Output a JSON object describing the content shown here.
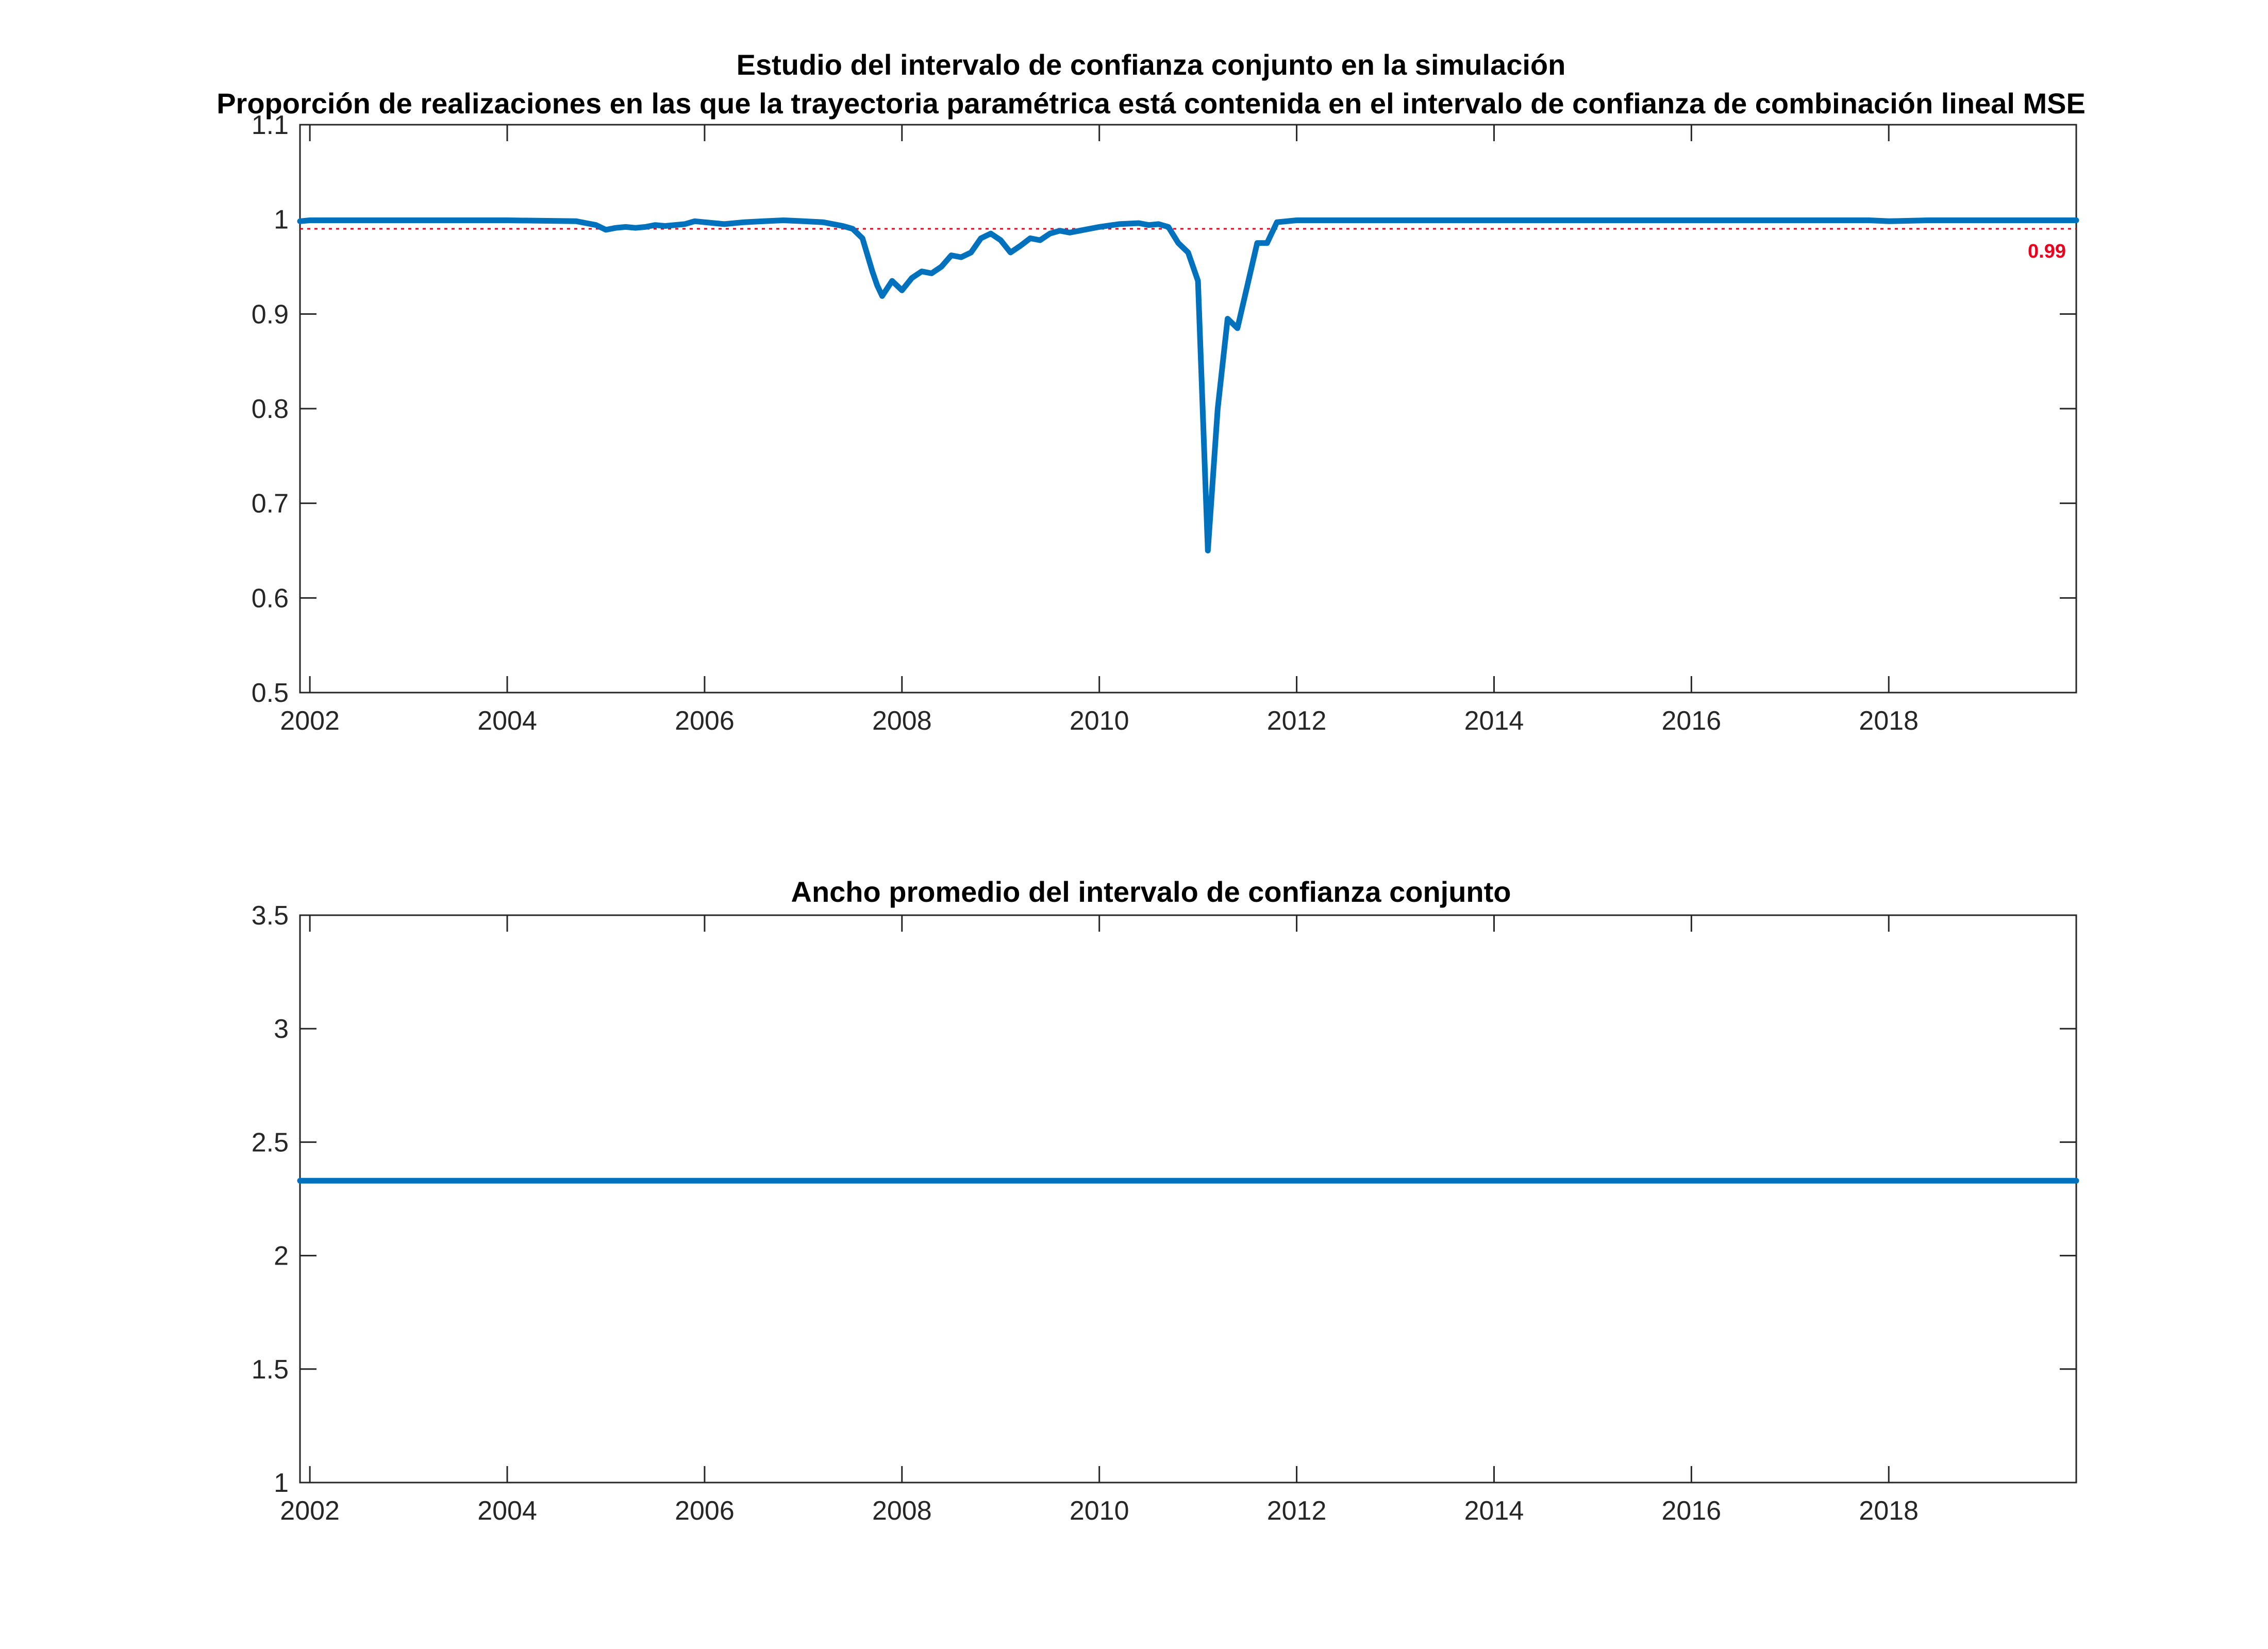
{
  "colors": {
    "series": "#0072BD",
    "reference": "#E8001C"
  },
  "chart_data": [
    {
      "type": "line",
      "title": "Estudio del intervalo de confianza conjunto en la simulación",
      "subtitle": "Proporción de realizaciones en las que la trayectoria paramétrica está contenida en el intervalo de confianza de combinación lineal MSE",
      "xlabel": "",
      "ylabel": "",
      "xlim": [
        2001.9,
        2019.9
      ],
      "ylim": [
        0.5,
        1.1
      ],
      "xticks": [
        "2002",
        "2004",
        "2006",
        "2008",
        "2010",
        "2012",
        "2014",
        "2016",
        "2018"
      ],
      "xtick_values": [
        2002,
        2004,
        2006,
        2008,
        2010,
        2012,
        2014,
        2016,
        2018
      ],
      "yticks": [
        "0.5",
        "0.6",
        "0.7",
        "0.8",
        "0.9",
        "1",
        "1.1"
      ],
      "ytick_values": [
        0.5,
        0.6,
        0.7,
        0.8,
        0.9,
        1.0,
        1.1
      ],
      "grid": false,
      "reference_line": {
        "y": 0.99,
        "label": "0.99"
      },
      "series": [
        {
          "x": [
            2001.9,
            2002.0,
            2003.0,
            2004.0,
            2004.7,
            2004.9,
            2005.0,
            2005.1,
            2005.2,
            2005.3,
            2005.4,
            2005.5,
            2005.6,
            2005.8,
            2005.9,
            2006.0,
            2006.2,
            2006.4,
            2006.6,
            2006.8,
            2007.0,
            2007.2,
            2007.4,
            2007.5,
            2007.6,
            2007.7,
            2007.75,
            2007.8,
            2007.9,
            2008.0,
            2008.1,
            2008.2,
            2008.3,
            2008.4,
            2008.5,
            2008.6,
            2008.7,
            2008.8,
            2008.9,
            2009.0,
            2009.1,
            2009.2,
            2009.3,
            2009.4,
            2009.5,
            2009.6,
            2009.7,
            2009.8,
            2009.9,
            2010.0,
            2010.2,
            2010.4,
            2010.5,
            2010.6,
            2010.7,
            2010.8,
            2010.9,
            2011.0,
            2011.1,
            2011.2,
            2011.3,
            2011.4,
            2011.5,
            2011.6,
            2011.7,
            2011.8,
            2012.0,
            2014.0,
            2016.0,
            2017.8,
            2018.0,
            2018.4,
            2019.9
          ],
          "values": [
            0.998,
            0.999,
            0.999,
            0.999,
            0.998,
            0.994,
            0.989,
            0.991,
            0.992,
            0.991,
            0.992,
            0.994,
            0.993,
            0.995,
            0.998,
            0.997,
            0.995,
            0.997,
            0.998,
            0.999,
            0.998,
            0.997,
            0.993,
            0.99,
            0.98,
            0.945,
            0.93,
            0.919,
            0.935,
            0.925,
            0.938,
            0.945,
            0.943,
            0.95,
            0.962,
            0.96,
            0.965,
            0.98,
            0.985,
            0.978,
            0.965,
            0.972,
            0.98,
            0.978,
            0.985,
            0.988,
            0.986,
            0.988,
            0.99,
            0.992,
            0.995,
            0.996,
            0.994,
            0.995,
            0.992,
            0.975,
            0.965,
            0.935,
            0.65,
            0.8,
            0.895,
            0.885,
            0.93,
            0.975,
            0.975,
            0.997,
            0.999,
            0.999,
            0.999,
            0.999,
            0.998,
            0.999,
            0.999
          ]
        }
      ]
    },
    {
      "type": "line",
      "title": "Ancho promedio del intervalo de confianza conjunto",
      "xlabel": "",
      "ylabel": "",
      "xlim": [
        2001.9,
        2019.9
      ],
      "ylim": [
        1,
        3.5
      ],
      "xticks": [
        "2002",
        "2004",
        "2006",
        "2008",
        "2010",
        "2012",
        "2014",
        "2016",
        "2018"
      ],
      "xtick_values": [
        2002,
        2004,
        2006,
        2008,
        2010,
        2012,
        2014,
        2016,
        2018
      ],
      "yticks": [
        "1",
        "1.5",
        "2",
        "2.5",
        "3",
        "3.5"
      ],
      "ytick_values": [
        1,
        1.5,
        2,
        2.5,
        3,
        3.5
      ],
      "grid": false,
      "series": [
        {
          "x": [
            2001.9,
            2019.9
          ],
          "values": [
            2.33,
            2.33
          ]
        }
      ]
    }
  ]
}
